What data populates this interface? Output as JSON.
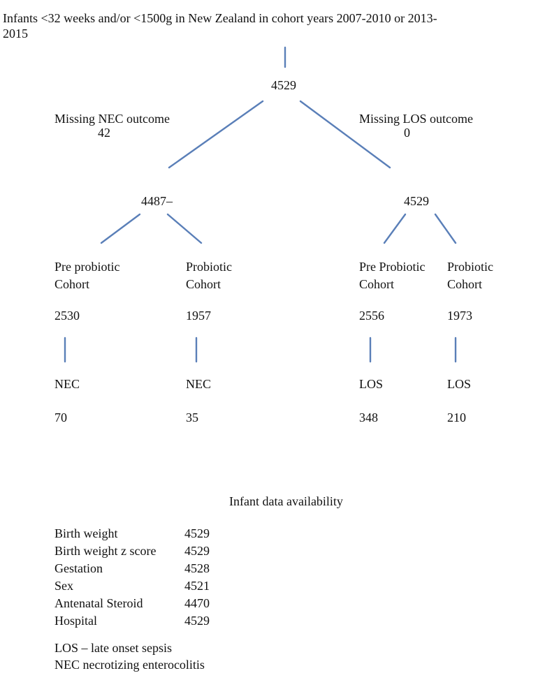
{
  "title_line1": "Infants <32 weeks and/or <1500g in New Zealand in cohort years 2007-2010 or 2013-",
  "title_line2": "2015",
  "root_count": "4529",
  "left_branch": {
    "missing_label": "Missing NEC outcome",
    "missing_count": "42",
    "count": "4487–",
    "pre": {
      "label_line1": "Pre probiotic",
      "label_line2": "Cohort",
      "count": "2530",
      "outcome": "NEC",
      "outcome_count": "70"
    },
    "post": {
      "label_line1": "Probiotic",
      "label_line2": "Cohort",
      "count": "1957",
      "outcome": "NEC",
      "outcome_count": "35"
    }
  },
  "right_branch": {
    "missing_label": "Missing LOS outcome",
    "missing_count": "0",
    "count": "4529",
    "pre": {
      "label_line1": "Pre Probiotic",
      "label_line2": "Cohort",
      "count": "2556",
      "outcome": "LOS",
      "outcome_count": "348"
    },
    "post": {
      "label_line1": "Probiotic",
      "label_line2": "Cohort",
      "count": "1973",
      "outcome": "LOS",
      "outcome_count": "210"
    }
  },
  "availability": {
    "heading": "Infant data availability",
    "rows": [
      {
        "label": "Birth weight",
        "value": "4529"
      },
      {
        "label": "Birth weight z score",
        "value": "4529"
      },
      {
        "label": "Gestation",
        "value": "4528"
      },
      {
        "label": "Sex",
        "value": "4521"
      },
      {
        "label": "Antenatal Steroid",
        "value": "4470"
      },
      {
        "label": "Hospital",
        "value": "4529"
      }
    ]
  },
  "legend": {
    "los": "LOS – late onset sepsis",
    "nec": "NEC necrotizing enterocolitis"
  },
  "line_color": "#5a7fb8"
}
